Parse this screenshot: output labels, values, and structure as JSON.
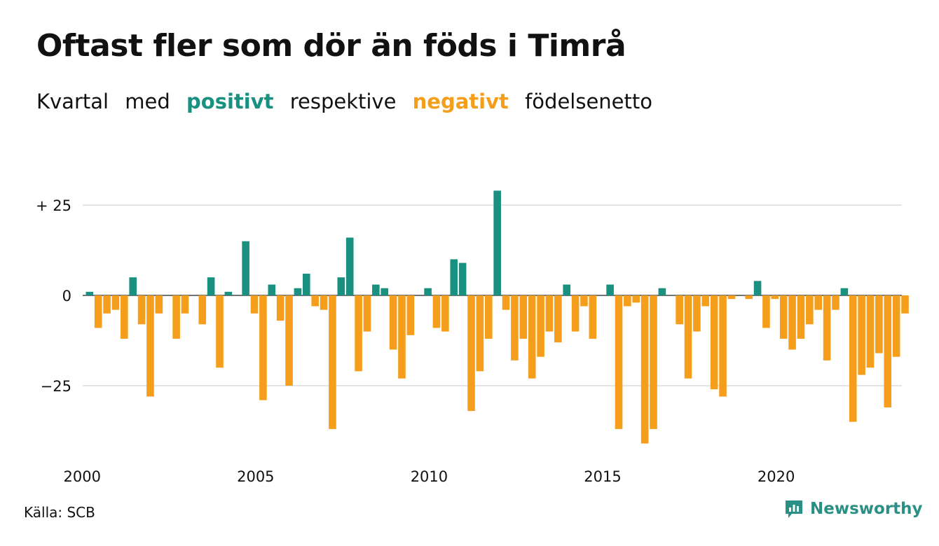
{
  "title": "Oftast fler som dör än föds i Timrå",
  "subtitle": {
    "w1": "Kvartal",
    "w2": "med",
    "positive": "positivt",
    "w3": "respektive",
    "negative": "negativt",
    "w4": "födelsenetto"
  },
  "source": "Källa: SCB",
  "brand": "Newsworthy",
  "colors": {
    "positive": "#1a9080",
    "negative": "#f59e1b",
    "grid": "#dcdcdc",
    "brand": "#2a8f84"
  },
  "chart_data": {
    "type": "bar",
    "ylim": [
      -42,
      29
    ],
    "y_ticks": [
      {
        "value": 25,
        "label": "+ 25"
      },
      {
        "value": 0,
        "label": "0"
      },
      {
        "value": -25,
        "label": "−25"
      }
    ],
    "x_ticks": [
      "2000",
      "2005",
      "2010",
      "2015",
      "2020"
    ],
    "grid": true,
    "first_quarter": "2000 Q1",
    "values": [
      1,
      -9,
      -5,
      -4,
      -12,
      5,
      -8,
      -28,
      -5,
      0,
      -12,
      -5,
      0,
      -8,
      5,
      -20,
      1,
      0,
      15,
      -5,
      -29,
      3,
      -7,
      -25,
      2,
      6,
      -3,
      -4,
      -37,
      5,
      16,
      -21,
      -10,
      3,
      2,
      -15,
      -23,
      -11,
      0,
      2,
      -9,
      -10,
      10,
      9,
      -32,
      -21,
      -12,
      29,
      -4,
      -18,
      -12,
      -23,
      -17,
      -10,
      -13,
      3,
      -10,
      -3,
      -12,
      0,
      3,
      -37,
      -3,
      -2,
      -41,
      -37,
      2,
      0,
      -8,
      -23,
      -10,
      -3,
      -26,
      -28,
      -1,
      0,
      -1,
      4,
      -9,
      -1,
      -12,
      -15,
      -12,
      -8,
      -4,
      -18,
      -4,
      2,
      -35,
      -22,
      -20,
      -16,
      -31,
      -17,
      -5
    ]
  }
}
